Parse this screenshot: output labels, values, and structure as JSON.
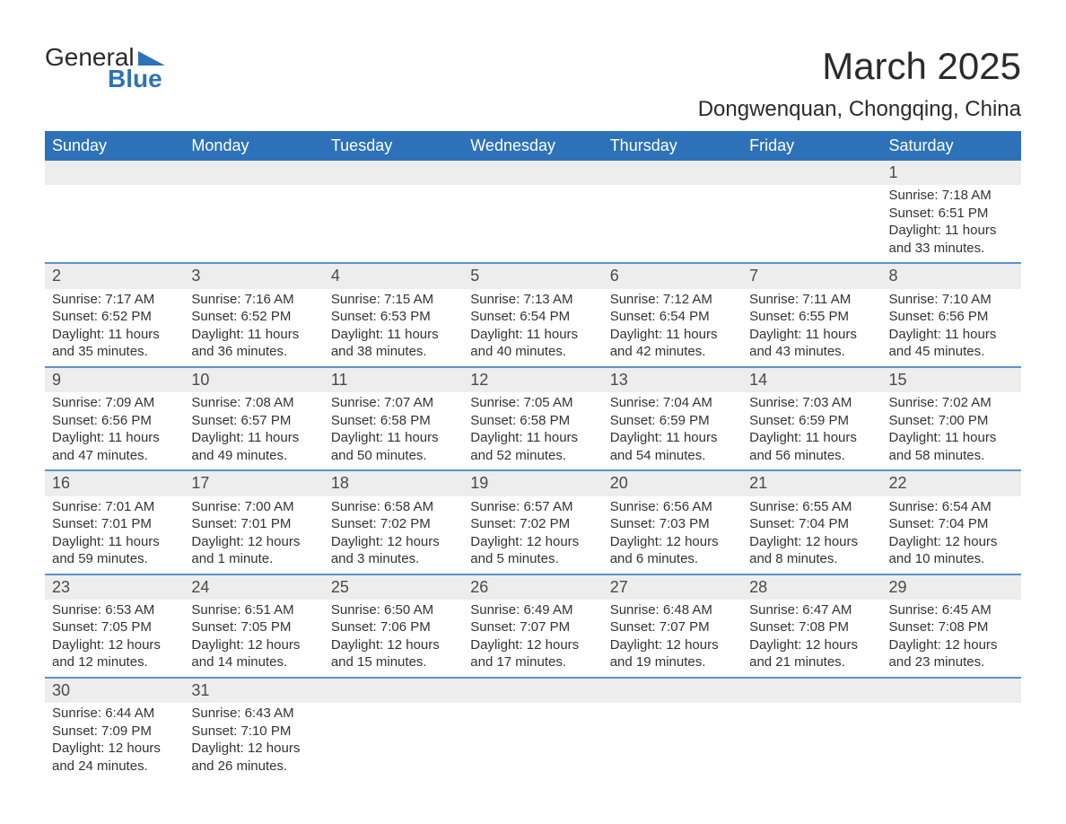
{
  "logo": {
    "line1": "General",
    "line2": "Blue",
    "triangle_color": "#2d72b8"
  },
  "title": "March 2025",
  "location": "Dongwenquan, Chongqing, China",
  "colors": {
    "header_bg": "#2d72b8",
    "header_text": "#ffffff",
    "row_border": "#5a94cc",
    "daynum_bg": "#ededed",
    "body_text": "#333333"
  },
  "day_names": [
    "Sunday",
    "Monday",
    "Tuesday",
    "Wednesday",
    "Thursday",
    "Friday",
    "Saturday"
  ],
  "weeks": [
    [
      null,
      null,
      null,
      null,
      null,
      null,
      {
        "n": "1",
        "sr": "Sunrise: 7:18 AM",
        "ss": "Sunset: 6:51 PM",
        "d1": "Daylight: 11 hours",
        "d2": "and 33 minutes."
      }
    ],
    [
      {
        "n": "2",
        "sr": "Sunrise: 7:17 AM",
        "ss": "Sunset: 6:52 PM",
        "d1": "Daylight: 11 hours",
        "d2": "and 35 minutes."
      },
      {
        "n": "3",
        "sr": "Sunrise: 7:16 AM",
        "ss": "Sunset: 6:52 PM",
        "d1": "Daylight: 11 hours",
        "d2": "and 36 minutes."
      },
      {
        "n": "4",
        "sr": "Sunrise: 7:15 AM",
        "ss": "Sunset: 6:53 PM",
        "d1": "Daylight: 11 hours",
        "d2": "and 38 minutes."
      },
      {
        "n": "5",
        "sr": "Sunrise: 7:13 AM",
        "ss": "Sunset: 6:54 PM",
        "d1": "Daylight: 11 hours",
        "d2": "and 40 minutes."
      },
      {
        "n": "6",
        "sr": "Sunrise: 7:12 AM",
        "ss": "Sunset: 6:54 PM",
        "d1": "Daylight: 11 hours",
        "d2": "and 42 minutes."
      },
      {
        "n": "7",
        "sr": "Sunrise: 7:11 AM",
        "ss": "Sunset: 6:55 PM",
        "d1": "Daylight: 11 hours",
        "d2": "and 43 minutes."
      },
      {
        "n": "8",
        "sr": "Sunrise: 7:10 AM",
        "ss": "Sunset: 6:56 PM",
        "d1": "Daylight: 11 hours",
        "d2": "and 45 minutes."
      }
    ],
    [
      {
        "n": "9",
        "sr": "Sunrise: 7:09 AM",
        "ss": "Sunset: 6:56 PM",
        "d1": "Daylight: 11 hours",
        "d2": "and 47 minutes."
      },
      {
        "n": "10",
        "sr": "Sunrise: 7:08 AM",
        "ss": "Sunset: 6:57 PM",
        "d1": "Daylight: 11 hours",
        "d2": "and 49 minutes."
      },
      {
        "n": "11",
        "sr": "Sunrise: 7:07 AM",
        "ss": "Sunset: 6:58 PM",
        "d1": "Daylight: 11 hours",
        "d2": "and 50 minutes."
      },
      {
        "n": "12",
        "sr": "Sunrise: 7:05 AM",
        "ss": "Sunset: 6:58 PM",
        "d1": "Daylight: 11 hours",
        "d2": "and 52 minutes."
      },
      {
        "n": "13",
        "sr": "Sunrise: 7:04 AM",
        "ss": "Sunset: 6:59 PM",
        "d1": "Daylight: 11 hours",
        "d2": "and 54 minutes."
      },
      {
        "n": "14",
        "sr": "Sunrise: 7:03 AM",
        "ss": "Sunset: 6:59 PM",
        "d1": "Daylight: 11 hours",
        "d2": "and 56 minutes."
      },
      {
        "n": "15",
        "sr": "Sunrise: 7:02 AM",
        "ss": "Sunset: 7:00 PM",
        "d1": "Daylight: 11 hours",
        "d2": "and 58 minutes."
      }
    ],
    [
      {
        "n": "16",
        "sr": "Sunrise: 7:01 AM",
        "ss": "Sunset: 7:01 PM",
        "d1": "Daylight: 11 hours",
        "d2": "and 59 minutes."
      },
      {
        "n": "17",
        "sr": "Sunrise: 7:00 AM",
        "ss": "Sunset: 7:01 PM",
        "d1": "Daylight: 12 hours",
        "d2": "and 1 minute."
      },
      {
        "n": "18",
        "sr": "Sunrise: 6:58 AM",
        "ss": "Sunset: 7:02 PM",
        "d1": "Daylight: 12 hours",
        "d2": "and 3 minutes."
      },
      {
        "n": "19",
        "sr": "Sunrise: 6:57 AM",
        "ss": "Sunset: 7:02 PM",
        "d1": "Daylight: 12 hours",
        "d2": "and 5 minutes."
      },
      {
        "n": "20",
        "sr": "Sunrise: 6:56 AM",
        "ss": "Sunset: 7:03 PM",
        "d1": "Daylight: 12 hours",
        "d2": "and 6 minutes."
      },
      {
        "n": "21",
        "sr": "Sunrise: 6:55 AM",
        "ss": "Sunset: 7:04 PM",
        "d1": "Daylight: 12 hours",
        "d2": "and 8 minutes."
      },
      {
        "n": "22",
        "sr": "Sunrise: 6:54 AM",
        "ss": "Sunset: 7:04 PM",
        "d1": "Daylight: 12 hours",
        "d2": "and 10 minutes."
      }
    ],
    [
      {
        "n": "23",
        "sr": "Sunrise: 6:53 AM",
        "ss": "Sunset: 7:05 PM",
        "d1": "Daylight: 12 hours",
        "d2": "and 12 minutes."
      },
      {
        "n": "24",
        "sr": "Sunrise: 6:51 AM",
        "ss": "Sunset: 7:05 PM",
        "d1": "Daylight: 12 hours",
        "d2": "and 14 minutes."
      },
      {
        "n": "25",
        "sr": "Sunrise: 6:50 AM",
        "ss": "Sunset: 7:06 PM",
        "d1": "Daylight: 12 hours",
        "d2": "and 15 minutes."
      },
      {
        "n": "26",
        "sr": "Sunrise: 6:49 AM",
        "ss": "Sunset: 7:07 PM",
        "d1": "Daylight: 12 hours",
        "d2": "and 17 minutes."
      },
      {
        "n": "27",
        "sr": "Sunrise: 6:48 AM",
        "ss": "Sunset: 7:07 PM",
        "d1": "Daylight: 12 hours",
        "d2": "and 19 minutes."
      },
      {
        "n": "28",
        "sr": "Sunrise: 6:47 AM",
        "ss": "Sunset: 7:08 PM",
        "d1": "Daylight: 12 hours",
        "d2": "and 21 minutes."
      },
      {
        "n": "29",
        "sr": "Sunrise: 6:45 AM",
        "ss": "Sunset: 7:08 PM",
        "d1": "Daylight: 12 hours",
        "d2": "and 23 minutes."
      }
    ],
    [
      {
        "n": "30",
        "sr": "Sunrise: 6:44 AM",
        "ss": "Sunset: 7:09 PM",
        "d1": "Daylight: 12 hours",
        "d2": "and 24 minutes."
      },
      {
        "n": "31",
        "sr": "Sunrise: 6:43 AM",
        "ss": "Sunset: 7:10 PM",
        "d1": "Daylight: 12 hours",
        "d2": "and 26 minutes."
      },
      null,
      null,
      null,
      null,
      null
    ]
  ]
}
